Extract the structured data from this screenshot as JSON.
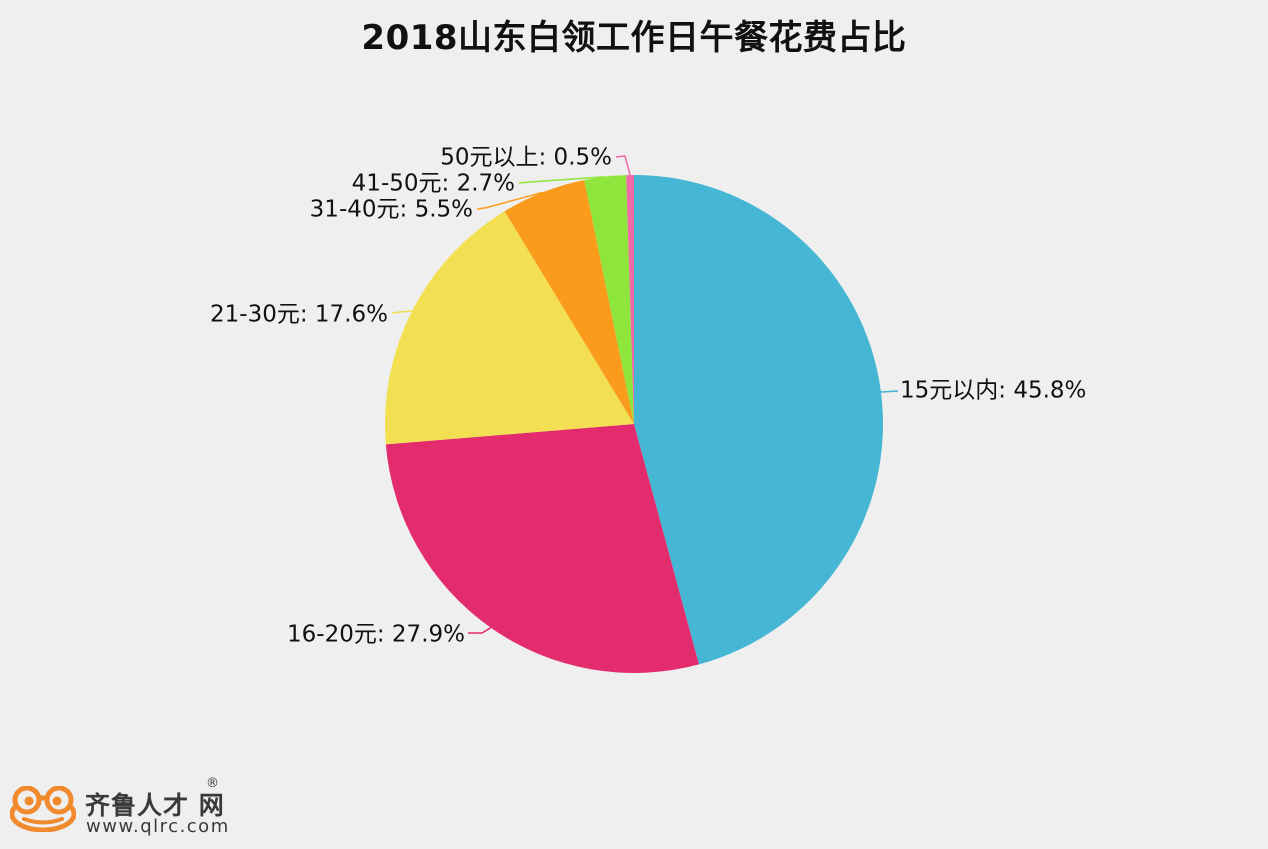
{
  "chart_data": {
    "type": "pie",
    "title": "2018山东白领工作日午餐花费占比",
    "label_separator": ": ",
    "slices": [
      {
        "label": "15元以内",
        "value": 45.8,
        "display": "45.8%",
        "color": "#45b6d3"
      },
      {
        "label": "16-20元",
        "value": 27.9,
        "display": "27.9%",
        "color": "#e32c6e"
      },
      {
        "label": "21-30元",
        "value": 17.6,
        "display": "17.6%",
        "color": "#f2e052"
      },
      {
        "label": "31-40元",
        "value": 5.5,
        "display": "5.5%",
        "color": "#fa9b1c"
      },
      {
        "label": "41-50元",
        "value": 2.7,
        "display": "2.7%",
        "color": "#8ee63c"
      },
      {
        "label": "50元以上",
        "value": 0.5,
        "display": "0.5%",
        "color": "#ef6aa6"
      }
    ],
    "start_angle": "12 o'clock",
    "direction": "clockwise",
    "legend": "none"
  },
  "watermark": {
    "brand_name": "齐鲁人才",
    "brand_suffix": "网",
    "registered_mark": "®",
    "url": "www.qlrc.com",
    "icon": "frog-logo-icon",
    "color": "#f08a2c"
  },
  "colors": {
    "background": "#efefef",
    "text": "#111111"
  }
}
